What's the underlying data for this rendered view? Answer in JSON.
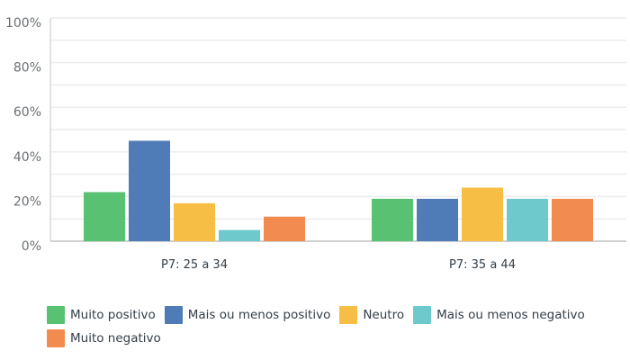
{
  "chart_data": {
    "type": "bar",
    "categories": [
      "P7: 25 a 34",
      "P7: 35 a 44"
    ],
    "series": [
      {
        "name": "Muito positivo",
        "color": "#59c172",
        "values": [
          22,
          19
        ]
      },
      {
        "name": "Mais ou menos positivo",
        "color": "#4f7bb6",
        "values": [
          45,
          19
        ]
      },
      {
        "name": "Neutro",
        "color": "#f6be45",
        "values": [
          17,
          24
        ]
      },
      {
        "name": "Mais ou menos negativo",
        "color": "#6dc9cc",
        "values": [
          5,
          19
        ]
      },
      {
        "name": "Muito negativo",
        "color": "#f28b50",
        "values": [
          11,
          19
        ]
      }
    ],
    "yticks": [
      "0%",
      "20%",
      "40%",
      "60%",
      "80%",
      "100%"
    ],
    "ylim": [
      0,
      100
    ],
    "grid": true,
    "legend": "bottom"
  }
}
